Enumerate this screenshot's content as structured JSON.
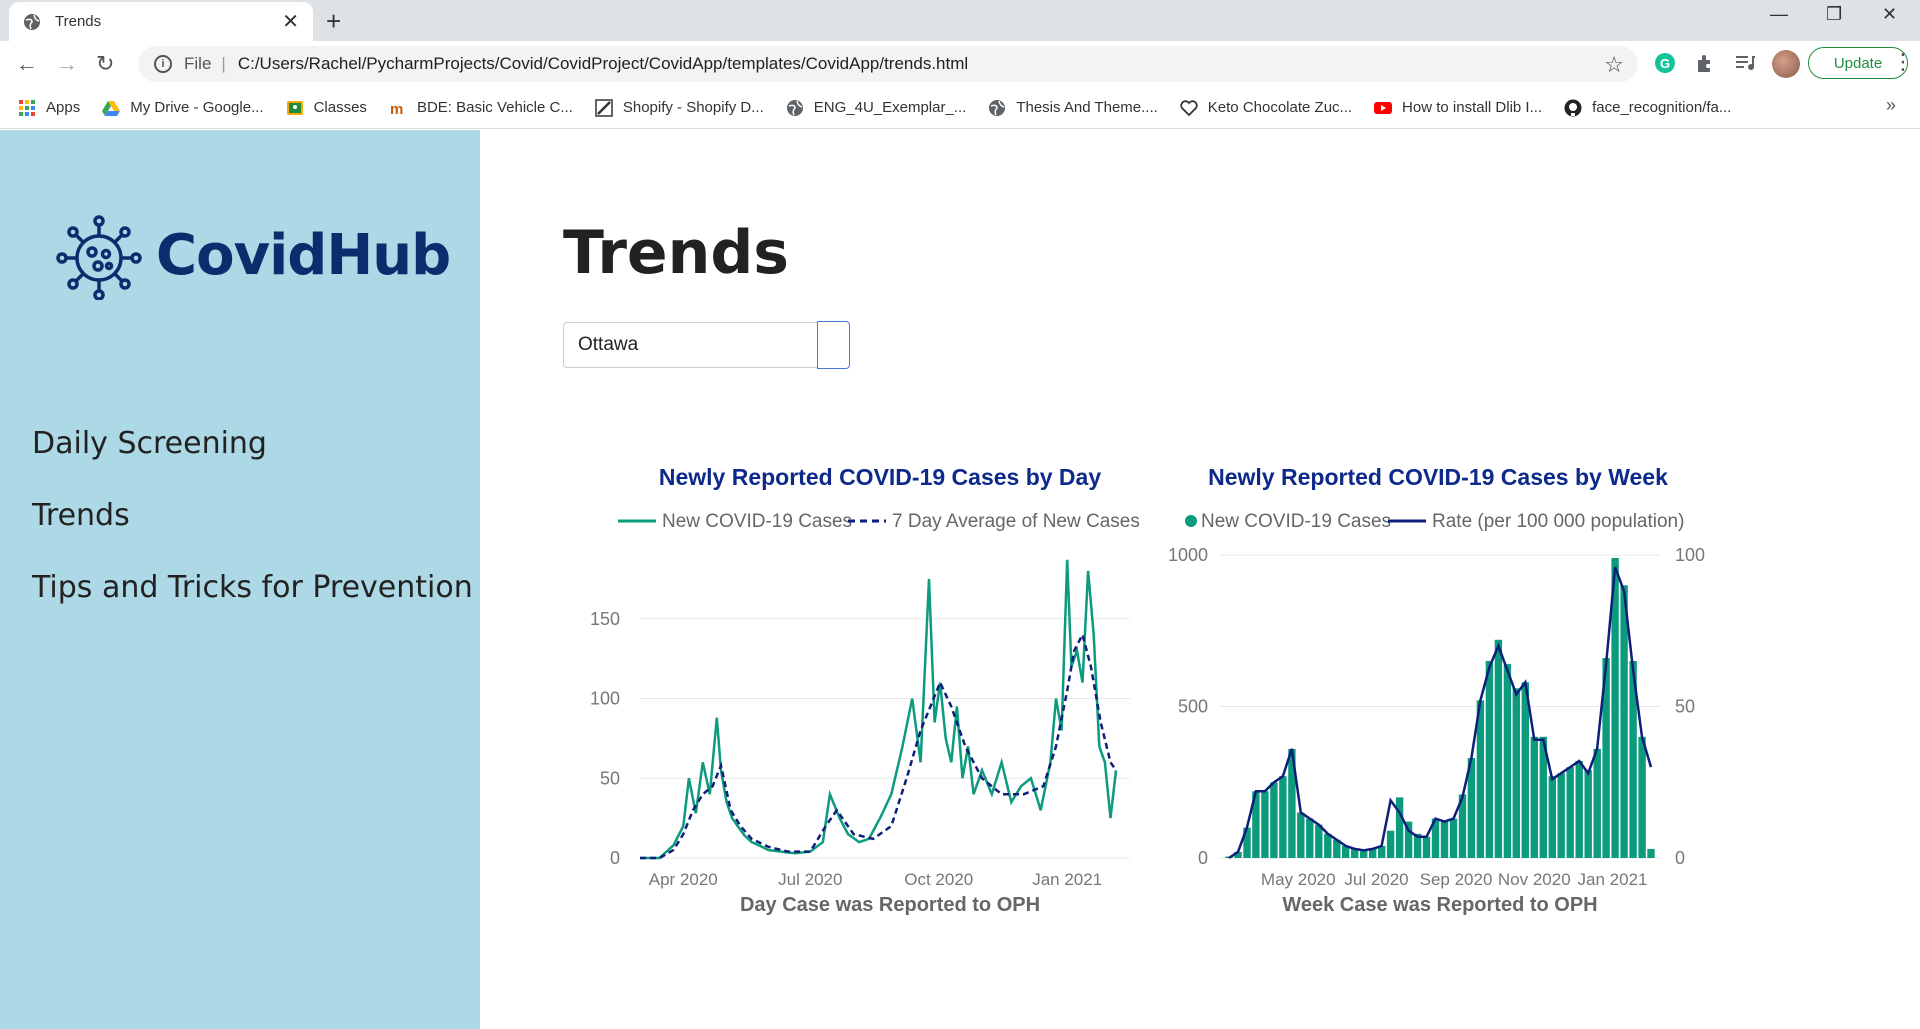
{
  "browser": {
    "tab_title": "Trends",
    "url_scheme": "File",
    "url": "C:/Users/Rachel/PycharmProjects/Covid/CovidProject/CovidApp/templates/CovidApp/trends.html",
    "update_label": "Update",
    "bookmarks": [
      {
        "label": "Apps",
        "icon": "apps-grid-icon"
      },
      {
        "label": "My Drive - Google...",
        "icon": "google-drive-icon"
      },
      {
        "label": "Classes",
        "icon": "google-classroom-icon"
      },
      {
        "label": "BDE: Basic Vehicle C...",
        "icon": "bde-icon"
      },
      {
        "label": "Shopify - Shopify D...",
        "icon": "shopify-icon"
      },
      {
        "label": "ENG_4U_Exemplar_...",
        "icon": "globe-icon"
      },
      {
        "label": "Thesis And Theme....",
        "icon": "globe-icon"
      },
      {
        "label": "Keto Chocolate Zuc...",
        "icon": "heart-icon"
      },
      {
        "label": "How to install Dlib I...",
        "icon": "youtube-icon"
      },
      {
        "label": "face_recognition/fa...",
        "icon": "github-icon"
      }
    ],
    "bookmarks_more": "»"
  },
  "sidebar": {
    "logo_text": "CovidHub",
    "nav": [
      {
        "label": "Daily Screening"
      },
      {
        "label": "Trends"
      },
      {
        "label": "Tips and Tricks for Prevention"
      }
    ]
  },
  "main": {
    "title": "Trends",
    "search_value": "Ottawa"
  },
  "colors": {
    "sidebar_bg": "#add8e6",
    "logo": "#0a2d6e",
    "series_teal": "#0d9b7e",
    "series_navy": "#0d1f7a",
    "chart_title": "#0d2a8a"
  },
  "chart_data": [
    {
      "type": "line",
      "title": "Newly Reported COVID-19 Cases by Day",
      "xlabel": "Day Case was Reported to OPH",
      "ylabel": "",
      "x_ticks": [
        "Apr 2020",
        "Jul 2020",
        "Oct 2020",
        "Jan 2021"
      ],
      "y_ticks": [
        0,
        50,
        100,
        150
      ],
      "xlim": [
        "2020-03-01",
        "2021-02-15"
      ],
      "ylim": [
        0,
        190
      ],
      "legend_position": "top",
      "grid": true,
      "series": [
        {
          "name": "New COVID-19 Cases",
          "style": "solid",
          "x": [
            "2020-03-01",
            "2020-03-15",
            "2020-03-25",
            "2020-04-01",
            "2020-04-05",
            "2020-04-10",
            "2020-04-15",
            "2020-04-20",
            "2020-04-25",
            "2020-04-28",
            "2020-05-02",
            "2020-05-06",
            "2020-05-10",
            "2020-05-15",
            "2020-05-20",
            "2020-05-25",
            "2020-06-01",
            "2020-06-10",
            "2020-06-20",
            "2020-07-01",
            "2020-07-10",
            "2020-07-15",
            "2020-07-22",
            "2020-07-28",
            "2020-08-05",
            "2020-08-12",
            "2020-08-20",
            "2020-08-28",
            "2020-09-05",
            "2020-09-12",
            "2020-09-18",
            "2020-09-24",
            "2020-09-28",
            "2020-10-02",
            "2020-10-06",
            "2020-10-10",
            "2020-10-14",
            "2020-10-18",
            "2020-10-22",
            "2020-10-26",
            "2020-11-01",
            "2020-11-08",
            "2020-11-15",
            "2020-11-22",
            "2020-11-29",
            "2020-12-06",
            "2020-12-13",
            "2020-12-20",
            "2020-12-24",
            "2020-12-28",
            "2021-01-01",
            "2021-01-04",
            "2021-01-08",
            "2021-01-12",
            "2021-01-16",
            "2021-01-20",
            "2021-01-24",
            "2021-01-28",
            "2021-02-01",
            "2021-02-05"
          ],
          "y": [
            0,
            0,
            8,
            20,
            50,
            28,
            60,
            40,
            88,
            55,
            35,
            25,
            20,
            14,
            10,
            8,
            5,
            4,
            3,
            4,
            10,
            40,
            25,
            15,
            10,
            12,
            25,
            40,
            70,
            100,
            60,
            175,
            85,
            110,
            75,
            60,
            95,
            50,
            70,
            40,
            55,
            40,
            60,
            35,
            45,
            50,
            30,
            60,
            100,
            80,
            187,
            120,
            130,
            110,
            180,
            140,
            70,
            60,
            25,
            55
          ]
        },
        {
          "name": "7 Day Average of New Cases",
          "style": "dashed",
          "x": [
            "2020-03-01",
            "2020-03-15",
            "2020-03-25",
            "2020-04-01",
            "2020-04-08",
            "2020-04-15",
            "2020-04-22",
            "2020-04-28",
            "2020-05-05",
            "2020-05-12",
            "2020-05-20",
            "2020-06-01",
            "2020-06-15",
            "2020-07-01",
            "2020-07-12",
            "2020-07-20",
            "2020-08-01",
            "2020-08-15",
            "2020-08-28",
            "2020-09-08",
            "2020-09-18",
            "2020-09-25",
            "2020-10-02",
            "2020-10-10",
            "2020-10-20",
            "2020-11-01",
            "2020-11-15",
            "2020-12-01",
            "2020-12-15",
            "2020-12-24",
            "2021-01-01",
            "2021-01-06",
            "2021-01-12",
            "2021-01-18",
            "2021-01-25",
            "2021-02-01",
            "2021-02-05"
          ],
          "y": [
            0,
            0,
            5,
            15,
            30,
            40,
            45,
            58,
            30,
            20,
            12,
            7,
            4,
            4,
            20,
            30,
            15,
            12,
            20,
            50,
            80,
            95,
            110,
            95,
            70,
            50,
            40,
            40,
            45,
            70,
            105,
            130,
            140,
            120,
            85,
            60,
            55
          ]
        }
      ]
    },
    {
      "type": "bar",
      "title": "Newly Reported COVID-19 Cases by Week",
      "xlabel": "Week Case was Reported to OPH",
      "ylabel": "",
      "x_ticks": [
        "May 2020",
        "Jul 2020",
        "Sep 2020",
        "Nov 2020",
        "Jan 2021"
      ],
      "y_ticks": [
        0,
        500,
        1000
      ],
      "y2_ticks": [
        0,
        50,
        100
      ],
      "ylim": [
        0,
        1000
      ],
      "y2lim": [
        0,
        100
      ],
      "legend_position": "top",
      "grid": true,
      "series": [
        {
          "name": "New COVID-19 Cases",
          "style": "bar",
          "x": [
            "2020-03-08",
            "2020-03-15",
            "2020-03-22",
            "2020-03-29",
            "2020-04-05",
            "2020-04-12",
            "2020-04-19",
            "2020-04-26",
            "2020-05-03",
            "2020-05-10",
            "2020-05-17",
            "2020-05-24",
            "2020-05-31",
            "2020-06-07",
            "2020-06-14",
            "2020-06-21",
            "2020-06-28",
            "2020-07-05",
            "2020-07-12",
            "2020-07-19",
            "2020-07-26",
            "2020-08-02",
            "2020-08-09",
            "2020-08-16",
            "2020-08-23",
            "2020-08-30",
            "2020-09-06",
            "2020-09-13",
            "2020-09-20",
            "2020-09-27",
            "2020-10-04",
            "2020-10-11",
            "2020-10-18",
            "2020-10-25",
            "2020-11-01",
            "2020-11-08",
            "2020-11-15",
            "2020-11-22",
            "2020-11-29",
            "2020-12-06",
            "2020-12-13",
            "2020-12-20",
            "2020-12-27",
            "2021-01-03",
            "2021-01-10",
            "2021-01-17",
            "2021-01-24",
            "2021-01-31"
          ],
          "y": [
            5,
            20,
            100,
            220,
            220,
            250,
            270,
            360,
            150,
            130,
            110,
            80,
            60,
            40,
            30,
            25,
            30,
            40,
            90,
            200,
            120,
            80,
            70,
            130,
            120,
            130,
            210,
            330,
            520,
            650,
            720,
            640,
            560,
            580,
            400,
            400,
            270,
            280,
            300,
            320,
            290,
            360,
            660,
            990,
            900,
            650,
            400,
            30
          ]
        },
        {
          "name": "Rate (per 100 000 population)",
          "style": "line",
          "axis": "right",
          "x": [
            "2020-03-08",
            "2020-03-15",
            "2020-03-22",
            "2020-03-29",
            "2020-04-05",
            "2020-04-12",
            "2020-04-19",
            "2020-04-26",
            "2020-05-03",
            "2020-05-10",
            "2020-05-17",
            "2020-05-24",
            "2020-05-31",
            "2020-06-07",
            "2020-06-14",
            "2020-06-21",
            "2020-06-28",
            "2020-07-05",
            "2020-07-12",
            "2020-07-19",
            "2020-07-26",
            "2020-08-02",
            "2020-08-09",
            "2020-08-16",
            "2020-08-23",
            "2020-08-30",
            "2020-09-06",
            "2020-09-13",
            "2020-09-20",
            "2020-09-27",
            "2020-10-04",
            "2020-10-11",
            "2020-10-18",
            "2020-10-25",
            "2020-11-01",
            "2020-11-08",
            "2020-11-15",
            "2020-11-22",
            "2020-11-29",
            "2020-12-06",
            "2020-12-13",
            "2020-12-20",
            "2020-12-27",
            "2021-01-03",
            "2021-01-10",
            "2021-01-17",
            "2021-01-24",
            "2021-01-31"
          ],
          "y": [
            0,
            2,
            10,
            22,
            22,
            25,
            27,
            36,
            15,
            13,
            11,
            8,
            6,
            4,
            3,
            2.5,
            3,
            4,
            19,
            15,
            9,
            7,
            7,
            13,
            12,
            13,
            20,
            33,
            52,
            63,
            70,
            62,
            54,
            58,
            39,
            39,
            26,
            28,
            30,
            32,
            28,
            36,
            64,
            96,
            88,
            62,
            40,
            30
          ]
        }
      ]
    }
  ]
}
